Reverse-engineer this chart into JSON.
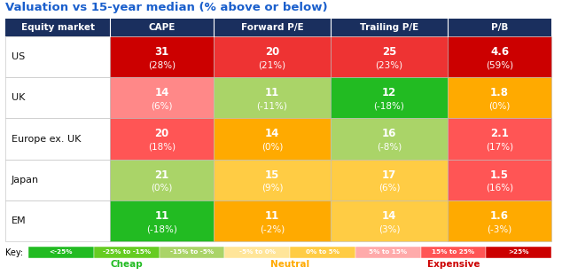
{
  "title": "Valuation vs 15-year median (% above or below)",
  "headers": [
    "Equity market",
    "CAPE",
    "Forward P/E",
    "Trailing P/E",
    "P/B"
  ],
  "rows": [
    {
      "label": "US",
      "cells": [
        {
          "val": "31",
          "pct": "(28%)",
          "color": "#cc0000"
        },
        {
          "val": "20",
          "pct": "(21%)",
          "color": "#ee3333"
        },
        {
          "val": "25",
          "pct": "(23%)",
          "color": "#ee3333"
        },
        {
          "val": "4.6",
          "pct": "(59%)",
          "color": "#cc0000"
        }
      ]
    },
    {
      "label": "UK",
      "cells": [
        {
          "val": "14",
          "pct": "(6%)",
          "color": "#ff8888"
        },
        {
          "val": "11",
          "pct": "(-11%)",
          "color": "#aad468"
        },
        {
          "val": "12",
          "pct": "(-18%)",
          "color": "#22bb22"
        },
        {
          "val": "1.8",
          "pct": "(0%)",
          "color": "#ffaa00"
        }
      ]
    },
    {
      "label": "Europe ex. UK",
      "cells": [
        {
          "val": "20",
          "pct": "(18%)",
          "color": "#ff5555"
        },
        {
          "val": "14",
          "pct": "(0%)",
          "color": "#ffaa00"
        },
        {
          "val": "16",
          "pct": "(-8%)",
          "color": "#aad468"
        },
        {
          "val": "2.1",
          "pct": "(17%)",
          "color": "#ff5555"
        }
      ]
    },
    {
      "label": "Japan",
      "cells": [
        {
          "val": "21",
          "pct": "(0%)",
          "color": "#aad468"
        },
        {
          "val": "15",
          "pct": "(9%)",
          "color": "#ffcc44"
        },
        {
          "val": "17",
          "pct": "(6%)",
          "color": "#ffcc44"
        },
        {
          "val": "1.5",
          "pct": "(16%)",
          "color": "#ff5555"
        }
      ]
    },
    {
      "label": "EM",
      "cells": [
        {
          "val": "11",
          "pct": "(-18%)",
          "color": "#22bb22"
        },
        {
          "val": "11",
          "pct": "(-2%)",
          "color": "#ffaa00"
        },
        {
          "val": "14",
          "pct": "(3%)",
          "color": "#ffcc44"
        },
        {
          "val": "1.6",
          "pct": "(-3%)",
          "color": "#ffaa00"
        }
      ]
    }
  ],
  "header_bg": "#1a2f5e",
  "header_fg": "#ffffff",
  "row_label_fg": "#111111",
  "border_color": "#bbbbbb",
  "key_items": [
    {
      "label": "<-25%",
      "color": "#22bb22"
    },
    {
      "label": "-25% to -15%",
      "color": "#66cc22"
    },
    {
      "label": "-15% to -5%",
      "color": "#aad468"
    },
    {
      "label": "-5% to 0%",
      "color": "#ffe599"
    },
    {
      "label": "0% to 5%",
      "color": "#ffcc44"
    },
    {
      "label": "5% to 15%",
      "color": "#ffaaaa"
    },
    {
      "label": "15% to 25%",
      "color": "#ff5555"
    },
    {
      "label": ">25%",
      "color": "#cc0000"
    }
  ],
  "key_label": "Key:",
  "cheap_label": "Cheap",
  "neutral_label": "Neutral",
  "expensive_label": "Expensive",
  "cheap_color": "#22bb22",
  "neutral_color": "#ffaa00",
  "expensive_color": "#cc0000",
  "title_color": "#1a5fcc",
  "fig_width": 6.34,
  "fig_height": 3.1,
  "dpi": 100
}
